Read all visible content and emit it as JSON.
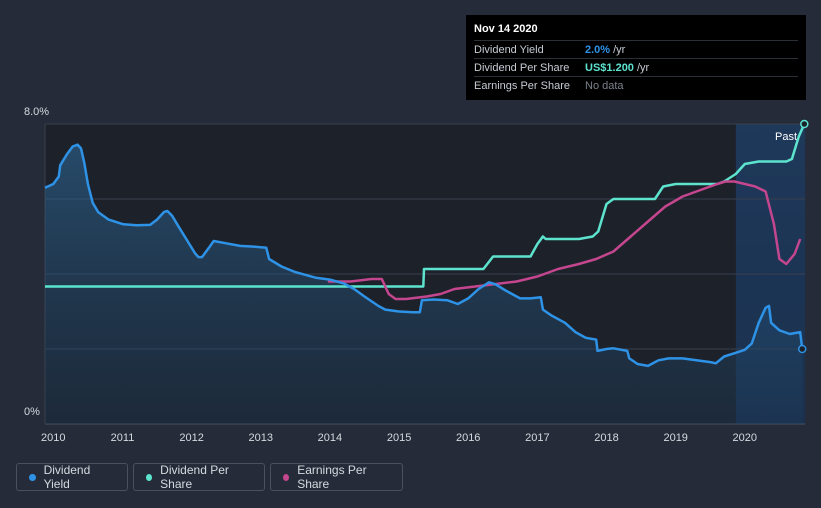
{
  "colors": {
    "background": "#252b38",
    "dividend_yield": "#2e93e6",
    "dividend_per_share": "#5de4cf",
    "earnings_per_share": "#c4468e",
    "grid": "#394050",
    "text": "#d6dae0"
  },
  "tooltip": {
    "date": "Nov 14 2020",
    "rows": [
      {
        "label": "Dividend Yield",
        "value": "2.0%",
        "unit": "/yr"
      },
      {
        "label": "Dividend Per Share",
        "value": "US$1.200",
        "unit": "/yr"
      },
      {
        "label": "Earnings Per Share",
        "value": "No data",
        "unit": ""
      }
    ]
  },
  "past_label": "Past",
  "legend": [
    {
      "label": "Dividend Yield"
    },
    {
      "label": "Dividend Per Share"
    },
    {
      "label": "Earnings Per Share"
    }
  ],
  "chart_data": {
    "type": "line",
    "title": "",
    "xlabel": "",
    "ylabel": "",
    "xlim": [
      2009.9,
      2020.87
    ],
    "ylim": [
      0,
      8
    ],
    "y_ticks": [
      "8.0%",
      "0%"
    ],
    "x_ticks": [
      "2010",
      "2011",
      "2012",
      "2013",
      "2014",
      "2015",
      "2016",
      "2017",
      "2018",
      "2019",
      "2020"
    ],
    "highlight_from": 2019.87,
    "series": [
      {
        "name": "Dividend Yield",
        "unit": "%",
        "points": [
          [
            2009.88,
            6.3
          ],
          [
            2010.0,
            6.4
          ],
          [
            2010.08,
            6.6
          ],
          [
            2010.1,
            6.9
          ],
          [
            2010.2,
            7.2
          ],
          [
            2010.28,
            7.4
          ],
          [
            2010.35,
            7.45
          ],
          [
            2010.4,
            7.35
          ],
          [
            2010.45,
            6.95
          ],
          [
            2010.5,
            6.4
          ],
          [
            2010.57,
            5.9
          ],
          [
            2010.65,
            5.65
          ],
          [
            2010.8,
            5.45
          ],
          [
            2011.0,
            5.33
          ],
          [
            2011.2,
            5.3
          ],
          [
            2011.4,
            5.31
          ],
          [
            2011.5,
            5.45
          ],
          [
            2011.6,
            5.65
          ],
          [
            2011.65,
            5.68
          ],
          [
            2011.72,
            5.55
          ],
          [
            2011.8,
            5.3
          ],
          [
            2011.9,
            5.0
          ],
          [
            2012.05,
            4.55
          ],
          [
            2012.1,
            4.45
          ],
          [
            2012.15,
            4.45
          ],
          [
            2012.25,
            4.7
          ],
          [
            2012.32,
            4.88
          ],
          [
            2012.5,
            4.82
          ],
          [
            2012.7,
            4.75
          ],
          [
            2012.9,
            4.73
          ],
          [
            2013.08,
            4.7
          ],
          [
            2013.12,
            4.4
          ],
          [
            2013.3,
            4.2
          ],
          [
            2013.5,
            4.05
          ],
          [
            2013.8,
            3.9
          ],
          [
            2014.0,
            3.85
          ],
          [
            2014.2,
            3.75
          ],
          [
            2014.35,
            3.6
          ],
          [
            2014.5,
            3.4
          ],
          [
            2014.7,
            3.15
          ],
          [
            2014.8,
            3.05
          ],
          [
            2015.0,
            3.0
          ],
          [
            2015.2,
            2.98
          ],
          [
            2015.3,
            2.98
          ],
          [
            2015.33,
            3.3
          ],
          [
            2015.5,
            3.32
          ],
          [
            2015.7,
            3.3
          ],
          [
            2015.85,
            3.2
          ],
          [
            2016.0,
            3.35
          ],
          [
            2016.15,
            3.6
          ],
          [
            2016.3,
            3.78
          ],
          [
            2016.4,
            3.72
          ],
          [
            2016.55,
            3.55
          ],
          [
            2016.75,
            3.35
          ],
          [
            2016.9,
            3.35
          ],
          [
            2017.05,
            3.38
          ],
          [
            2017.08,
            3.05
          ],
          [
            2017.2,
            2.9
          ],
          [
            2017.4,
            2.7
          ],
          [
            2017.55,
            2.45
          ],
          [
            2017.7,
            2.3
          ],
          [
            2017.85,
            2.25
          ],
          [
            2017.87,
            1.95
          ],
          [
            2018.0,
            2.0
          ],
          [
            2018.1,
            2.02
          ],
          [
            2018.3,
            1.95
          ],
          [
            2018.33,
            1.75
          ],
          [
            2018.45,
            1.6
          ],
          [
            2018.6,
            1.55
          ],
          [
            2018.75,
            1.7
          ],
          [
            2018.9,
            1.75
          ],
          [
            2019.1,
            1.75
          ],
          [
            2019.3,
            1.7
          ],
          [
            2019.5,
            1.65
          ],
          [
            2019.58,
            1.62
          ],
          [
            2019.7,
            1.8
          ],
          [
            2019.87,
            1.9
          ],
          [
            2020.0,
            1.98
          ],
          [
            2020.1,
            2.15
          ],
          [
            2020.2,
            2.7
          ],
          [
            2020.3,
            3.1
          ],
          [
            2020.35,
            3.15
          ],
          [
            2020.38,
            2.7
          ],
          [
            2020.5,
            2.5
          ],
          [
            2020.65,
            2.4
          ],
          [
            2020.8,
            2.45
          ],
          [
            2020.83,
            2.0
          ]
        ]
      },
      {
        "name": "Dividend Per Share",
        "unit": "US$",
        "points": [
          [
            2009.88,
            0.55
          ],
          [
            2015.35,
            0.55
          ],
          [
            2015.36,
            0.62
          ],
          [
            2016.22,
            0.62
          ],
          [
            2016.36,
            0.67
          ],
          [
            2016.9,
            0.67
          ],
          [
            2017.0,
            0.72
          ],
          [
            2017.08,
            0.75
          ],
          [
            2017.12,
            0.74
          ],
          [
            2017.6,
            0.74
          ],
          [
            2017.8,
            0.75
          ],
          [
            2017.88,
            0.77
          ],
          [
            2018.0,
            0.88
          ],
          [
            2018.1,
            0.9
          ],
          [
            2018.7,
            0.9
          ],
          [
            2018.82,
            0.95
          ],
          [
            2019.0,
            0.96
          ],
          [
            2019.6,
            0.96
          ],
          [
            2019.7,
            0.97
          ],
          [
            2019.87,
            1.0
          ],
          [
            2020.0,
            1.04
          ],
          [
            2020.2,
            1.05
          ],
          [
            2020.6,
            1.05
          ],
          [
            2020.68,
            1.06
          ],
          [
            2020.78,
            1.15
          ],
          [
            2020.86,
            1.2
          ]
        ]
      },
      {
        "name": "Earnings Per Share",
        "unit": "US$",
        "points": [
          [
            2013.97,
            0.57
          ],
          [
            2014.3,
            0.57
          ],
          [
            2014.6,
            0.58
          ],
          [
            2014.75,
            0.58
          ],
          [
            2014.85,
            0.52
          ],
          [
            2014.95,
            0.5
          ],
          [
            2015.1,
            0.5
          ],
          [
            2015.4,
            0.51
          ],
          [
            2015.6,
            0.52
          ],
          [
            2015.8,
            0.54
          ],
          [
            2016.1,
            0.55
          ],
          [
            2016.4,
            0.56
          ],
          [
            2016.7,
            0.57
          ],
          [
            2017.0,
            0.59
          ],
          [
            2017.3,
            0.62
          ],
          [
            2017.6,
            0.64
          ],
          [
            2017.85,
            0.66
          ],
          [
            2018.1,
            0.69
          ],
          [
            2018.35,
            0.75
          ],
          [
            2018.6,
            0.81
          ],
          [
            2018.85,
            0.87
          ],
          [
            2019.1,
            0.91
          ],
          [
            2019.4,
            0.94
          ],
          [
            2019.6,
            0.96
          ],
          [
            2019.72,
            0.97
          ],
          [
            2019.85,
            0.97
          ],
          [
            2020.0,
            0.96
          ],
          [
            2020.15,
            0.95
          ],
          [
            2020.3,
            0.93
          ],
          [
            2020.42,
            0.8
          ],
          [
            2020.5,
            0.66
          ],
          [
            2020.6,
            0.64
          ],
          [
            2020.72,
            0.68
          ],
          [
            2020.8,
            0.74
          ]
        ]
      }
    ]
  }
}
